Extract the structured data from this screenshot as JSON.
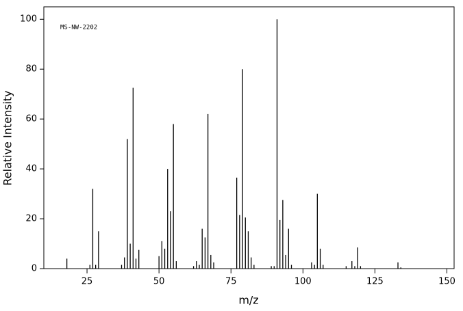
{
  "chart_data": {
    "type": "stem",
    "annotation": "MS-NW-2202",
    "xlabel": "m/z",
    "ylabel": "Relative Intensity",
    "x": [
      18,
      26,
      27,
      28,
      29,
      37,
      38,
      39,
      40,
      41,
      42,
      43,
      50,
      51,
      52,
      53,
      54,
      55,
      56,
      62,
      63,
      64,
      65,
      66,
      67,
      68,
      69,
      77,
      78,
      79,
      80,
      81,
      82,
      83,
      89,
      90,
      91,
      92,
      93,
      94,
      95,
      96,
      103,
      104,
      105,
      106,
      107,
      115,
      117,
      118,
      119,
      120,
      133,
      134
    ],
    "values": [
      4,
      1.5,
      32,
      1.5,
      15,
      1.5,
      4.5,
      52,
      10,
      72.5,
      4,
      7.5,
      5,
      11,
      8,
      40,
      23,
      58,
      3,
      1,
      3,
      1.5,
      16,
      12.5,
      62,
      5.5,
      2.5,
      36.5,
      21.5,
      80,
      20.5,
      15,
      4.5,
      1.5,
      1,
      1,
      100,
      19.5,
      27.5,
      5.5,
      16,
      1.5,
      2.5,
      1.5,
      30,
      8,
      1.5,
      1,
      3,
      1,
      8.5,
      1,
      2.5,
      0.5
    ],
    "color": "#000000",
    "xlim": [
      10,
      152.5
    ],
    "xticks": [
      25,
      50,
      75,
      100,
      125,
      150
    ],
    "ylim": [
      0,
      105
    ],
    "yticks": [
      0,
      20,
      40,
      60,
      80,
      100
    ]
  }
}
